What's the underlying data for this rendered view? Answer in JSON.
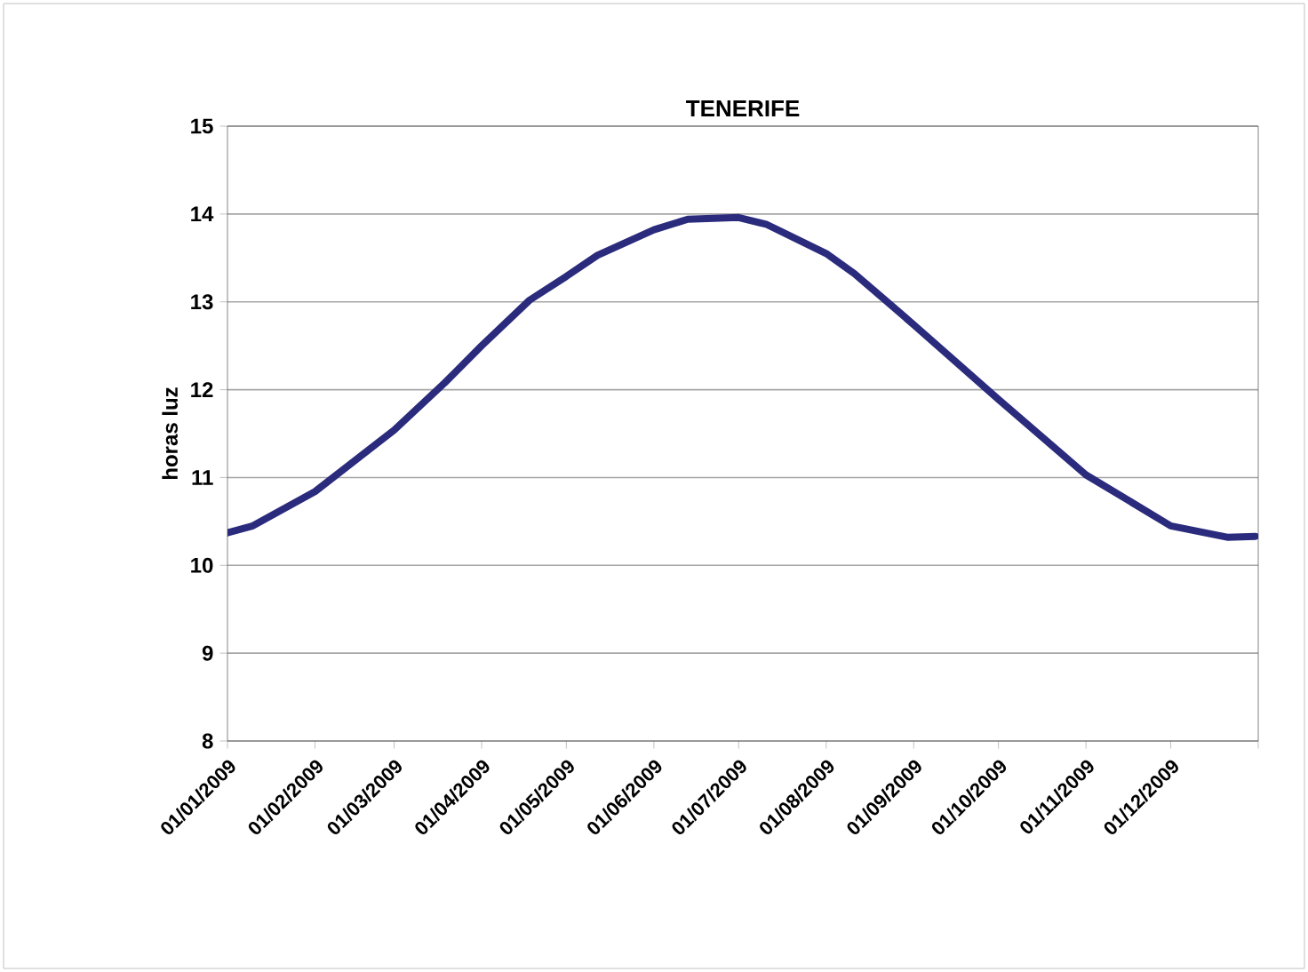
{
  "chart_data": {
    "type": "line",
    "title": "TENERIFE",
    "ylabel": "horas luz",
    "x": [
      "2009-01-01",
      "2009-01-10",
      "2009-02-01",
      "2009-03-01",
      "2009-03-19",
      "2009-04-01",
      "2009-04-18",
      "2009-05-01",
      "2009-05-12",
      "2009-06-01",
      "2009-06-13",
      "2009-07-01",
      "2009-07-11",
      "2009-08-01",
      "2009-08-11",
      "2009-09-01",
      "2009-10-01",
      "2009-11-01",
      "2009-12-01",
      "2009-12-21",
      "2009-12-31"
    ],
    "series": [
      {
        "color": "#2b2b7d",
        "values": [
          10.37,
          10.45,
          10.84,
          11.54,
          12.08,
          12.5,
          13.02,
          13.29,
          13.53,
          13.82,
          13.94,
          13.96,
          13.88,
          13.55,
          13.32,
          12.74,
          11.89,
          11.03,
          10.45,
          10.32,
          10.33
        ]
      }
    ],
    "xlim": [
      "2009-01-01",
      "2010-01-01"
    ],
    "xticks": [
      {
        "value": "2009-01-01",
        "label": "01/01/2009"
      },
      {
        "value": "2009-02-01",
        "label": "01/02/2009"
      },
      {
        "value": "2009-03-01",
        "label": "01/03/2009"
      },
      {
        "value": "2009-04-01",
        "label": "01/04/2009"
      },
      {
        "value": "2009-05-01",
        "label": "01/05/2009"
      },
      {
        "value": "2009-06-01",
        "label": "01/06/2009"
      },
      {
        "value": "2009-07-01",
        "label": "01/07/2009"
      },
      {
        "value": "2009-08-01",
        "label": "01/08/2009"
      },
      {
        "value": "2009-09-01",
        "label": "01/09/2009"
      },
      {
        "value": "2009-10-01",
        "label": "01/10/2009"
      },
      {
        "value": "2009-11-01",
        "label": "01/11/2009"
      },
      {
        "value": "2009-12-01",
        "label": "01/12/2009"
      },
      {
        "value": "2010-01-01",
        "label": null
      }
    ],
    "ylim": [
      8,
      15
    ],
    "yticks": [
      8,
      9,
      10,
      11,
      12,
      13,
      14,
      15
    ],
    "grid": "y",
    "marker": "none",
    "line_style": "solid"
  }
}
